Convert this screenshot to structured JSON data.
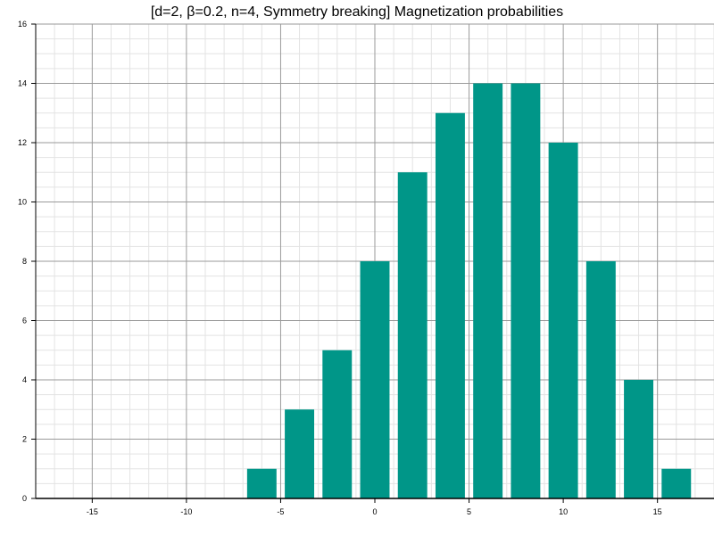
{
  "chart_data": {
    "type": "bar",
    "title": "[d=2, β=0.2, n=4, Symmetry breaking] Magnetization probabilities",
    "xlabel": "",
    "ylabel": "",
    "x": [
      -16,
      -14,
      -12,
      -10,
      -8,
      -6,
      -4,
      -2,
      0,
      2,
      4,
      6,
      8,
      10,
      12,
      14,
      16
    ],
    "values": [
      0,
      0,
      0,
      0,
      0,
      1,
      3,
      5,
      8,
      11,
      13,
      14,
      14,
      12,
      8,
      4,
      1
    ],
    "xlim": [
      -18,
      18
    ],
    "ylim": [
      0,
      16
    ],
    "x_ticks": [
      -15,
      -10,
      -5,
      0,
      5,
      10,
      15
    ],
    "y_ticks": [
      0,
      2,
      4,
      6,
      8,
      10,
      12,
      14,
      16
    ],
    "bar_color": "#009688",
    "grid": true
  }
}
